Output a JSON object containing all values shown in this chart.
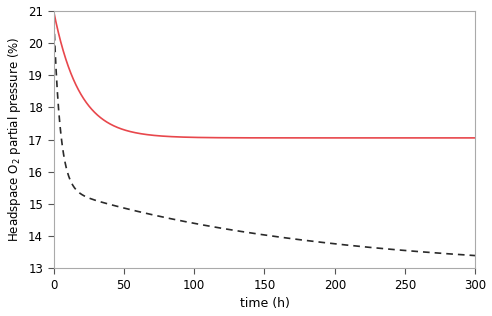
{
  "title": "",
  "xlabel": "time (h)",
  "ylabel": "Headspace O$_2$ partial pressure (%)",
  "xlim": [
    0,
    300
  ],
  "ylim": [
    13,
    21
  ],
  "xticks": [
    0,
    50,
    100,
    150,
    200,
    250,
    300
  ],
  "yticks": [
    13,
    14,
    15,
    16,
    17,
    18,
    19,
    20,
    21
  ],
  "red_line_color": "#e8474c",
  "black_line_color": "#2a2a2a",
  "background_color": "#ffffff",
  "red_start": 21.0,
  "red_asymptote": 17.05,
  "red_decay": 0.055,
  "black_start": 21.0,
  "black_A": 8.0,
  "black_k": 0.007,
  "black_power_a": 21.0,
  "black_power_b": 2.55,
  "black_power_c": 0.38
}
